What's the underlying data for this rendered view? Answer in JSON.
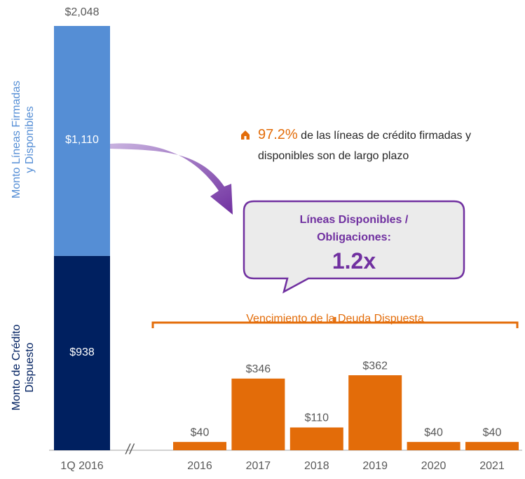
{
  "chart_data": {
    "type": "bar",
    "ylim": [
      0,
      2048
    ],
    "stack": {
      "category": "1Q 2016",
      "series": [
        {
          "name": "Monto de Crédito Dispuesto",
          "color": "#002060",
          "values": [
            938
          ],
          "value_labels": [
            "$938"
          ]
        },
        {
          "name": "Monto Líneas Firmadas y Disponibles",
          "color": "#558ed5",
          "values": [
            1110
          ],
          "value_labels": [
            "$1,110"
          ]
        }
      ],
      "total": 2048,
      "total_label": "$2,048"
    },
    "categories": [
      "2016",
      "2017",
      "2018",
      "2019",
      "2020",
      "2021"
    ],
    "values": [
      40,
      346,
      110,
      362,
      40,
      40
    ],
    "value_labels": [
      "$40",
      "$346",
      "$110",
      "$362",
      "$40",
      "$40"
    ],
    "color": "#e36c09",
    "bracket_label": "Vencimiento de la Deuda Dispuesta",
    "note": {
      "highlight": "97.2%",
      "text": "de las líneas de crédito firmadas y disponibles son de largo plazo"
    },
    "callout": {
      "title": "Líneas Disponibles / Obligaciones:",
      "value": "1.2x"
    }
  }
}
